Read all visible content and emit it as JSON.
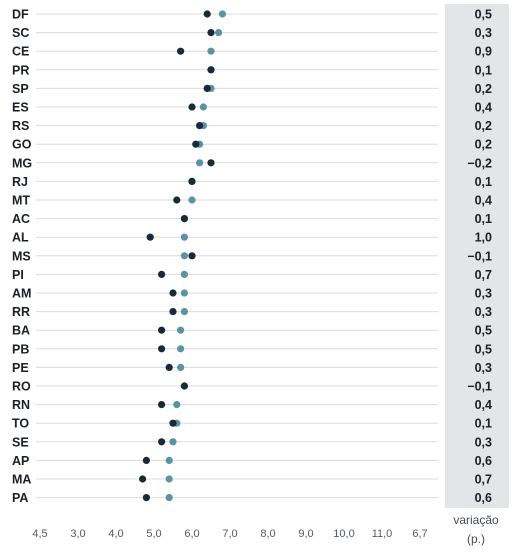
{
  "chart_data": {
    "type": "scatter",
    "title": "",
    "xlabel": "",
    "ylabel": "",
    "states": [
      "DF",
      "SC",
      "CE",
      "PR",
      "SP",
      "ES",
      "RS",
      "GO",
      "MG",
      "RJ",
      "MT",
      "AC",
      "AL",
      "MS",
      "PI",
      "AM",
      "RR",
      "BA",
      "PB",
      "PE",
      "RO",
      "RN",
      "TO",
      "SE",
      "AP",
      "MA",
      "PA"
    ],
    "x_ticks": [
      "4,5",
      "3,0",
      "4,0",
      "5,0",
      "6,0",
      "7,0",
      "8,0",
      "9,0",
      "10,0",
      "11,0",
      "6,7"
    ],
    "variation_header": "variação",
    "variation_unit": "(p.)",
    "variation_labels": [
      "0,5",
      "0,3",
      "0,9",
      "0,1",
      "0,2",
      "0,4",
      "0,2",
      "0,2",
      "−0,2",
      "0,1",
      "0,4",
      "0,1",
      "1,0",
      "−0,1",
      "0,7",
      "0,3",
      "0,3",
      "0,5",
      "0,5",
      "0,3",
      "−0,1",
      "0,4",
      "0,1",
      "0,3",
      "0,6",
      "0,7",
      "0,6"
    ],
    "series": [
      {
        "values": [
          6.4,
          6.5,
          5.7,
          6.5,
          6.4,
          6.0,
          6.2,
          6.1,
          6.5,
          6.0,
          5.6,
          5.8,
          4.9,
          6.0,
          5.2,
          5.5,
          5.5,
          5.2,
          5.2,
          5.4,
          5.8,
          5.2,
          5.5,
          5.2,
          4.8,
          4.7,
          4.8
        ],
        "color": "#172a36"
      },
      {
        "values": [
          6.8,
          6.7,
          6.5,
          6.5,
          6.5,
          6.3,
          6.3,
          6.2,
          6.2,
          6.0,
          6.0,
          5.8,
          5.8,
          5.8,
          5.8,
          5.8,
          5.8,
          5.7,
          5.7,
          5.7,
          5.8,
          5.6,
          5.6,
          5.5,
          5.4,
          5.4,
          5.4
        ],
        "color": "#5a93a1"
      }
    ],
    "xlim": [
      2.0,
      12.0
    ],
    "grid": true,
    "panel_color": "#e4e5e6"
  }
}
